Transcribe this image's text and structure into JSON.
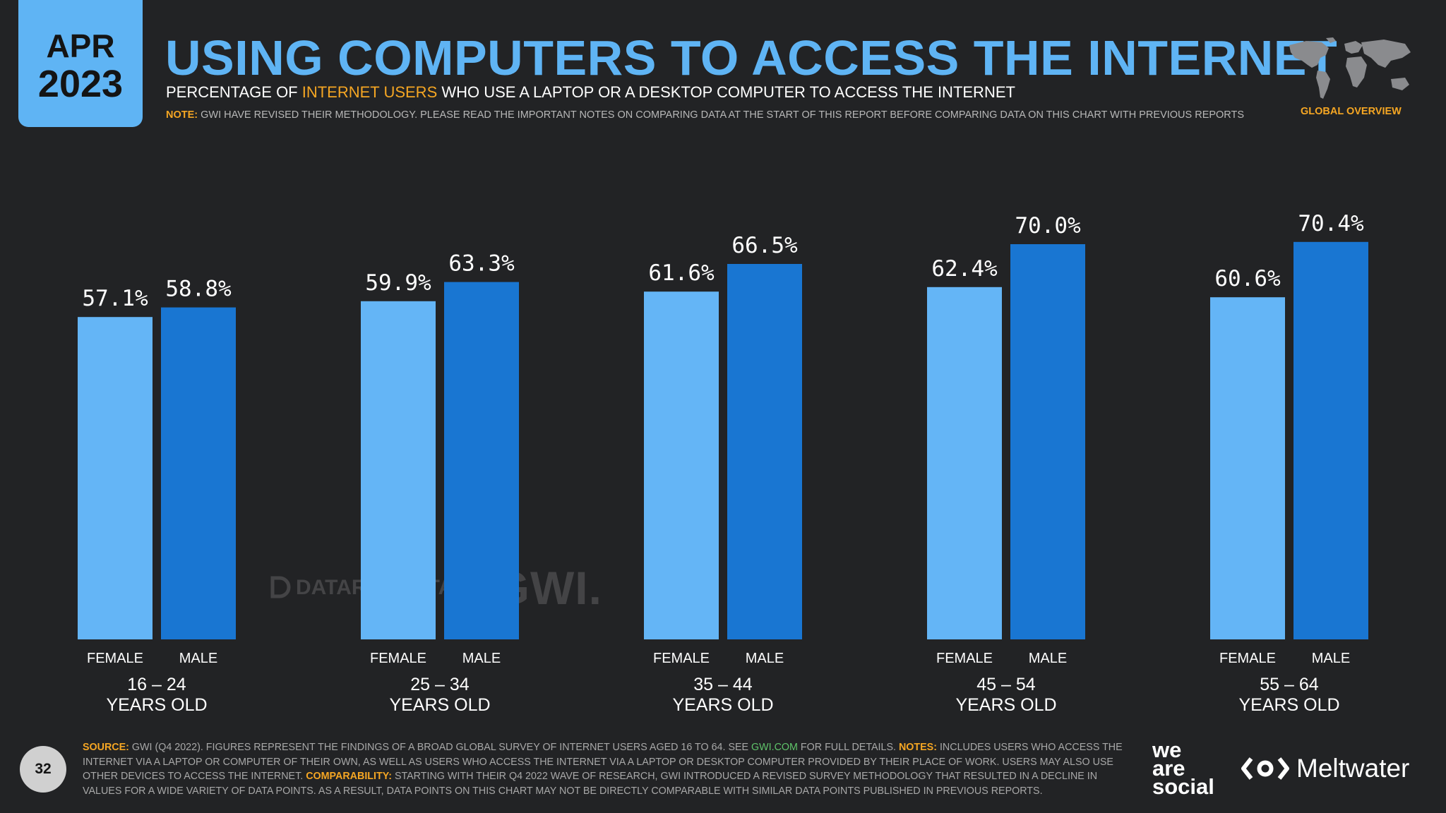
{
  "header": {
    "month": "APR",
    "year": "2023",
    "title": "USING COMPUTERS TO ACCESS THE INTERNET",
    "subtitle_pre": "PERCENTAGE OF ",
    "subtitle_highlight": "INTERNET USERS",
    "subtitle_post": " WHO USE A LAPTOP OR A DESKTOP COMPUTER TO ACCESS THE INTERNET",
    "note_label": "NOTE:",
    "note_text": " GWI HAVE REVISED THEIR METHODOLOGY. PLEASE READ THE IMPORTANT NOTES ON COMPARING DATA AT THE START OF THIS REPORT BEFORE COMPARING DATA ON THIS CHART WITH PREVIOUS REPORTS",
    "region": "GLOBAL OVERVIEW"
  },
  "colors": {
    "female": "#64b5f6",
    "male": "#1976d2",
    "accent": "#f5a623",
    "title": "#5fb4f4"
  },
  "chart_data": {
    "type": "bar",
    "title": "USING COMPUTERS TO ACCESS THE INTERNET",
    "ylabel": "",
    "xlabel": "",
    "ylim": [
      0,
      100
    ],
    "grid": false,
    "categories": [
      {
        "range": "16 – 24",
        "sub": "YEARS OLD"
      },
      {
        "range": "25 – 34",
        "sub": "YEARS OLD"
      },
      {
        "range": "35 – 44",
        "sub": "YEARS OLD"
      },
      {
        "range": "45 – 54",
        "sub": "YEARS OLD"
      },
      {
        "range": "55 – 64",
        "sub": "YEARS OLD"
      }
    ],
    "series": [
      {
        "name": "FEMALE",
        "values": [
          57.1,
          59.9,
          61.6,
          62.4,
          60.6
        ],
        "labels": [
          "57.1%",
          "59.9%",
          "61.6%",
          "62.4%",
          "60.6%"
        ]
      },
      {
        "name": "MALE",
        "values": [
          58.8,
          63.3,
          66.5,
          70.0,
          70.4
        ],
        "labels": [
          "58.8%",
          "63.3%",
          "66.5%",
          "70.0%",
          "70.4%"
        ]
      }
    ]
  },
  "watermark": {
    "datareportal": "DATAREPORTAL",
    "gwi": "GWI."
  },
  "footer": {
    "page_number": "32",
    "source_label": "SOURCE:",
    "source_text": " GWI (Q4 2022). FIGURES REPRESENT THE FINDINGS OF A BROAD GLOBAL SURVEY OF INTERNET USERS AGED 16 TO 64. SEE ",
    "source_link": "GWI.COM",
    "source_text2": " FOR FULL DETAILS. ",
    "notes_label": "NOTES:",
    "notes_text": " INCLUDES USERS WHO ACCESS THE INTERNET VIA A LAPTOP OR COMPUTER OF THEIR OWN, AS WELL AS USERS WHO ACCESS THE INTERNET VIA A LAPTOP OR DESKTOP COMPUTER PROVIDED BY THEIR PLACE OF WORK. USERS MAY ALSO USE OTHER DEVICES TO ACCESS THE INTERNET. ",
    "comparability_label": "COMPARABILITY:",
    "comparability_text": " STARTING WITH THEIR Q4 2022 WAVE OF RESEARCH, GWI INTRODUCED A REVISED SURVEY METHODOLOGY THAT RESULTED IN A DECLINE IN VALUES FOR A WIDE VARIETY OF DATA POINTS. AS A RESULT, DATA POINTS ON THIS CHART MAY NOT BE DIRECTLY COMPARABLE WITH SIMILAR DATA POINTS PUBLISHED IN PREVIOUS REPORTS.",
    "we_are_social": [
      "we",
      "are",
      "social"
    ],
    "meltwater": "Meltwater"
  }
}
